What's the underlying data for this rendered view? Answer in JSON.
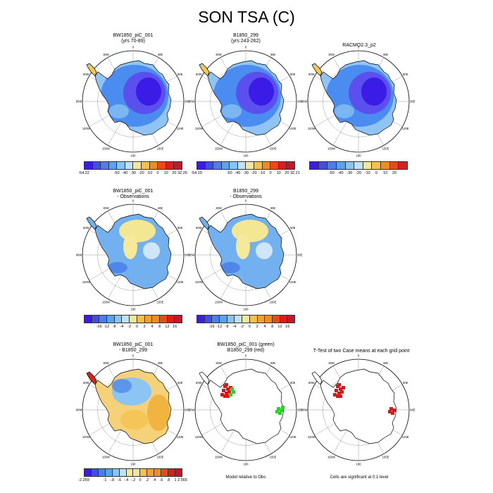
{
  "figure_title": "SON TSA (C)",
  "panels": {
    "p1": {
      "line1": "BW1850_piC_001",
      "line2": "(yrs 70-89)"
    },
    "p2": {
      "line1": "B1850_299",
      "line2": "(yrs 243-262)"
    },
    "p3": {
      "line1": "RACMO2.3_p2",
      "line2": ""
    },
    "p4": {
      "line1": "BW1850_piC_001",
      "line2": "- Observations"
    },
    "p5": {
      "line1": "B1850_299",
      "line2": "- Observations"
    },
    "p6": {
      "line1": "BW1850_piC_001",
      "line2": "- B1850_299"
    },
    "p7": {
      "line1": "BW1850_piC_001 (green)",
      "line2": "B1850_299 (red)"
    },
    "p8": {
      "line1": "T-Test of two Case means at each grid point",
      "line2": ""
    }
  },
  "notes": {
    "model_relative": "Model relative to Obs",
    "significance": "Cells are significant at 0.1 level"
  },
  "map_labels": [
    "0",
    "30E",
    "60E",
    "90E",
    "120E",
    "150E",
    "180",
    "150W",
    "120W",
    "90W",
    "60W",
    "30W"
  ],
  "colorbars": {
    "abs1": {
      "colors": [
        "#3a1ce6",
        "#3f4ee8",
        "#4a7ef0",
        "#5aa2f0",
        "#85c5f5",
        "#bfe1f5",
        "#f4e79a",
        "#f8c045",
        "#f28c1c",
        "#e94b14",
        "#d81e1e",
        "#c2182e"
      ],
      "labels": [
        "-54.22",
        "-50",
        "-40",
        "-30",
        "-20",
        "-10",
        "0",
        "10",
        "20",
        "32.26"
      ]
    },
    "abs2": {
      "colors": [
        "#3a1ce6",
        "#3f4ee8",
        "#4a7ef0",
        "#5aa2f0",
        "#85c5f5",
        "#bfe1f5",
        "#f4e79a",
        "#f8c045",
        "#f28c1c",
        "#e94b14",
        "#d81e1e",
        "#c2182e"
      ],
      "labels": [
        "-54.19",
        "-50",
        "-40",
        "-30",
        "-20",
        "-10",
        "0",
        "10",
        "20",
        "32.21"
      ]
    },
    "abs3": {
      "colors": [
        "#3a1ce6",
        "#3f4ee8",
        "#4a7ef0",
        "#5aa2f0",
        "#85c5f5",
        "#bfe1f5",
        "#f4e79a",
        "#f8c045",
        "#f28c1c",
        "#e94b14",
        "#d81e1e"
      ],
      "labels": [
        "-50",
        "-40",
        "-30",
        "-20",
        "-10",
        "0",
        "10",
        "20"
      ]
    },
    "diff1": {
      "colors": [
        "#3a1ce6",
        "#3f4ee8",
        "#4a7ef0",
        "#5aa2f0",
        "#85c5f5",
        "#bfe1f5",
        "#f4e79a",
        "#f8c045",
        "#f2a22a",
        "#f28c1c",
        "#e94b14",
        "#d81e1e",
        "#c2182e"
      ],
      "labels": [
        "-16",
        "-12",
        "-8",
        "-4",
        "-2",
        "0",
        "2",
        "4",
        "8",
        "12",
        "16"
      ]
    },
    "diff2": {
      "colors": [
        "#3a1ce6",
        "#3f4ee8",
        "#4a7ef0",
        "#5aa2f0",
        "#85c5f5",
        "#bfe1f5",
        "#f4e79a",
        "#f8c045",
        "#f2a22a",
        "#f28c1c",
        "#e94b14",
        "#d81e1e",
        "#c2182e"
      ],
      "labels": [
        "-16",
        "-12",
        "-8",
        "-4",
        "-2",
        "0",
        "2",
        "4",
        "8",
        "12",
        "16"
      ]
    },
    "diff3": {
      "colors": [
        "#3a1ce6",
        "#3f4ee8",
        "#4a7ef0",
        "#5aa2f0",
        "#85c5f5",
        "#bfe1f5",
        "#f4e79a",
        "#f8e2a0",
        "#f8c045",
        "#f2a22a",
        "#f28c1c",
        "#e94b14",
        "#d81e1e",
        "#c2182e"
      ],
      "labels": [
        "-2.259",
        "-1",
        "-.8",
        "-.6",
        "-.4",
        "-.2",
        "0",
        ".2",
        ".4",
        ".6",
        ".8",
        "1",
        "2.565"
      ]
    }
  },
  "palette": {
    "ice_blue": "#4a8cf0",
    "deep_blue": "#3a1ce6",
    "mid_blue": "#6ea8f0",
    "warm": "#f4e38a",
    "orange": "#f0b437",
    "sig_red": "#e01414",
    "sig_green": "#18e018"
  }
}
